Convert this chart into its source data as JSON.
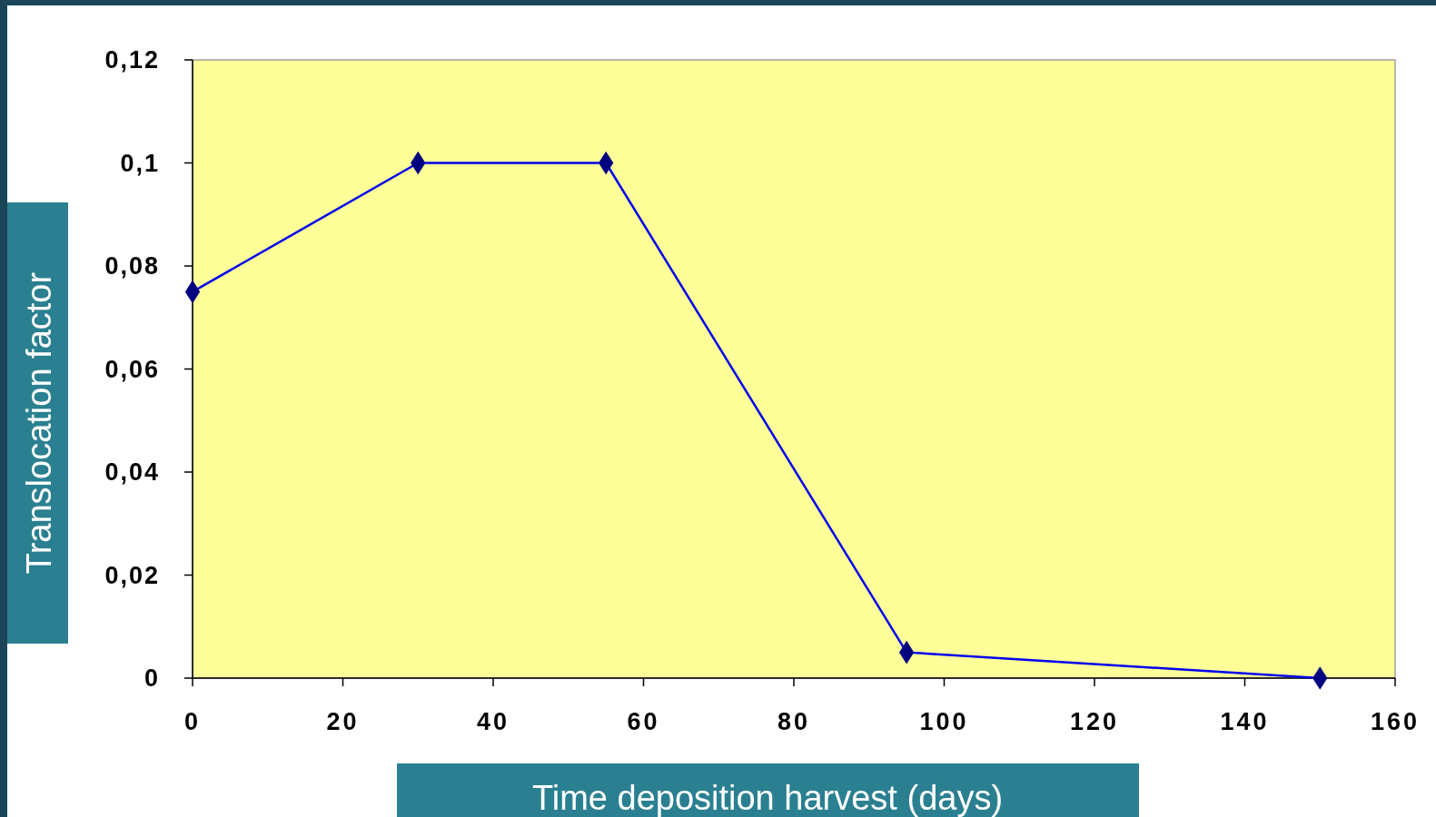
{
  "chart_data": {
    "type": "line",
    "xlabel": "Time deposition harvest (days)",
    "ylabel": "Translocation factor",
    "x": [
      0,
      30,
      55,
      95,
      150
    ],
    "series": [
      {
        "color": "#0000ee",
        "values": [
          0.075,
          0.1,
          0.1,
          0.005,
          0
        ]
      }
    ],
    "xlim": [
      0,
      160
    ],
    "xticks": [
      0,
      20,
      40,
      60,
      80,
      100,
      120,
      140,
      160
    ],
    "ylim": [
      0,
      0.12
    ],
    "yticks": [
      0,
      {
        "value": 0.02,
        "label": "0,02"
      },
      {
        "value": 0.04,
        "label": "0,04"
      },
      {
        "value": 0.06,
        "label": "0,06"
      },
      {
        "value": 0.08,
        "label": "0,08"
      },
      {
        "value": 0.1,
        "label": "0,1"
      },
      {
        "value": 0.12,
        "label": "0,12"
      }
    ],
    "grid": false,
    "marker": "diamond",
    "line_style": "solid"
  }
}
